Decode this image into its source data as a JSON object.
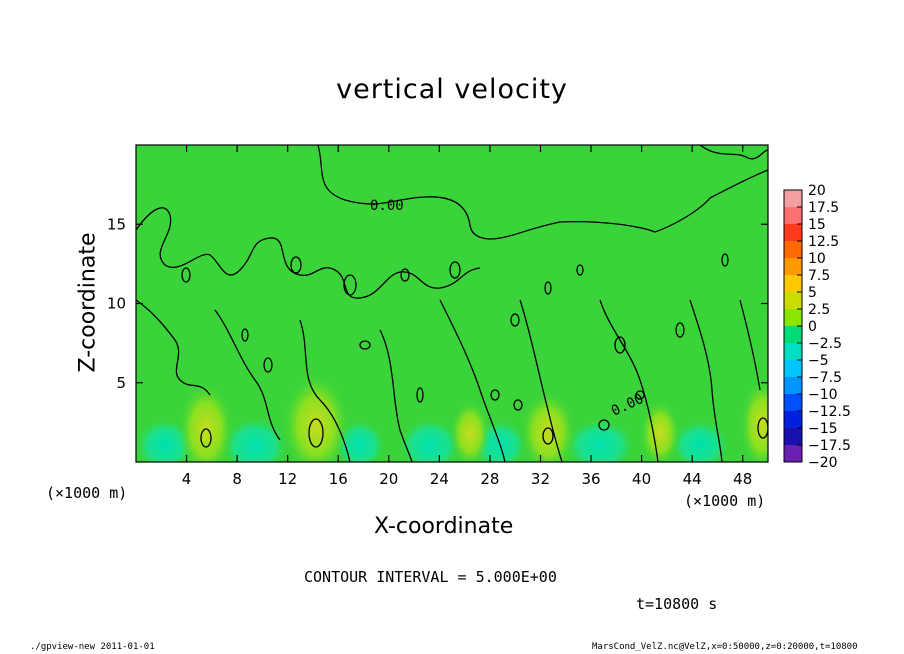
{
  "chart_data": {
    "type": "heatmap",
    "title": "vertical velocity",
    "xlabel": "X-coordinate",
    "ylabel": "Z-coordinate",
    "x_unit": "(×1000 m)",
    "y_unit": "(×1000 m)",
    "xlim": [
      0,
      50
    ],
    "ylim": [
      0,
      20
    ],
    "x_ticks": [
      4,
      8,
      12,
      16,
      20,
      24,
      28,
      32,
      36,
      40,
      44,
      48
    ],
    "y_ticks": [
      5,
      10,
      15
    ],
    "contour_label": "0.00",
    "contour_interval_text": "CONTOUR INTERVAL = 5.000E+00",
    "time_text": "t=10800 s",
    "colorbar": [
      {
        "value": "20",
        "color": "#f4a0a0"
      },
      {
        "value": "17.5",
        "color": "#ff7070"
      },
      {
        "value": "15",
        "color": "#ff3a1a"
      },
      {
        "value": "12.5",
        "color": "#ff6a00"
      },
      {
        "value": "10",
        "color": "#ff9a00"
      },
      {
        "value": "7.5",
        "color": "#ffc800"
      },
      {
        "value": "5",
        "color": "#ccdc00"
      },
      {
        "value": "2.5",
        "color": "#8ae600"
      },
      {
        "value": "0",
        "color": "#2cdc2c"
      },
      {
        "value": "−2.5",
        "color": "#00dc78"
      },
      {
        "value": "−5",
        "color": "#00e0c0"
      },
      {
        "value": "−7.5",
        "color": "#00c8ff"
      },
      {
        "value": "−10",
        "color": "#0096ff"
      },
      {
        "value": "−12.5",
        "color": "#0050ff"
      },
      {
        "value": "−15",
        "color": "#0020e0"
      },
      {
        "value": "−17.5",
        "color": "#1a10b0"
      },
      {
        "value": "−20",
        "color": "#6a20b0"
      }
    ],
    "colors": {
      "background_field": "#3ad43a",
      "contour": "#000000"
    }
  },
  "footer": {
    "left": "./gpview-new  2011-01-01",
    "right": "MarsCond_VelZ.nc@VelZ,x=0:50000,z=0:20000,t=10800"
  }
}
